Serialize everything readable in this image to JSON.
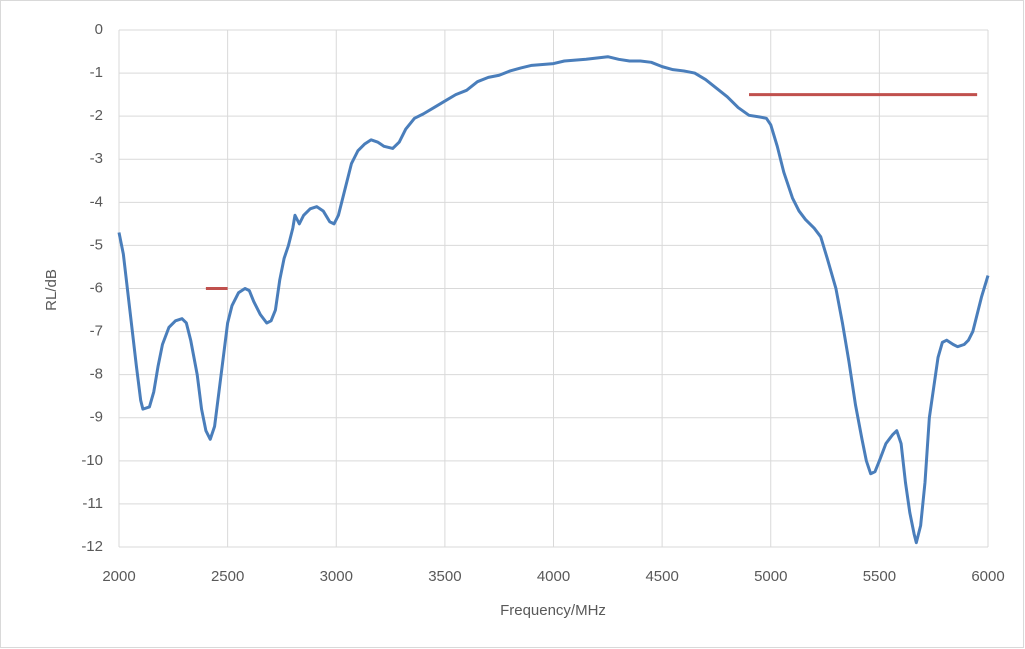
{
  "chart_data": {
    "type": "line",
    "x_label": "Frequency/MHz",
    "y_label": "RL/dB",
    "xlim": [
      2000,
      6000
    ],
    "xticks": [
      2000,
      2500,
      3000,
      3500,
      4000,
      4500,
      5000,
      5500,
      6000
    ],
    "ylim": [
      -12,
      0
    ],
    "yticks": [
      0,
      -1,
      -2,
      -3,
      -4,
      -5,
      -6,
      -7,
      -8,
      -9,
      -10,
      -11,
      -12
    ],
    "grid": true,
    "series": [
      {
        "color": "#4a7ebb",
        "x": [
          2000,
          2020,
          2050,
          2080,
          2100,
          2110,
          2140,
          2160,
          2180,
          2200,
          2230,
          2260,
          2290,
          2310,
          2330,
          2360,
          2380,
          2400,
          2420,
          2440,
          2460,
          2480,
          2500,
          2520,
          2550,
          2580,
          2600,
          2620,
          2650,
          2680,
          2700,
          2720,
          2740,
          2760,
          2780,
          2800,
          2810,
          2830,
          2850,
          2880,
          2910,
          2940,
          2970,
          2990,
          3010,
          3040,
          3070,
          3100,
          3130,
          3160,
          3190,
          3220,
          3260,
          3290,
          3320,
          3360,
          3400,
          3450,
          3500,
          3550,
          3600,
          3650,
          3700,
          3750,
          3800,
          3850,
          3900,
          3950,
          4000,
          4050,
          4100,
          4150,
          4200,
          4250,
          4300,
          4350,
          4400,
          4450,
          4500,
          4550,
          4600,
          4650,
          4700,
          4750,
          4800,
          4850,
          4900,
          4950,
          4980,
          5000,
          5030,
          5060,
          5100,
          5130,
          5160,
          5200,
          5230,
          5260,
          5300,
          5330,
          5360,
          5390,
          5420,
          5440,
          5460,
          5480,
          5500,
          5530,
          5560,
          5580,
          5600,
          5620,
          5640,
          5660,
          5670,
          5690,
          5710,
          5730,
          5750,
          5770,
          5790,
          5810,
          5840,
          5860,
          5890,
          5910,
          5930,
          5950,
          5970,
          6000
        ],
        "values": [
          -4.7,
          -5.2,
          -6.5,
          -7.8,
          -8.6,
          -8.8,
          -8.75,
          -8.4,
          -7.8,
          -7.3,
          -6.9,
          -6.75,
          -6.7,
          -6.8,
          -7.2,
          -8.0,
          -8.8,
          -9.3,
          -9.5,
          -9.2,
          -8.4,
          -7.6,
          -6.8,
          -6.4,
          -6.1,
          -6.0,
          -6.05,
          -6.3,
          -6.6,
          -6.8,
          -6.75,
          -6.5,
          -5.8,
          -5.3,
          -5.0,
          -4.6,
          -4.3,
          -4.5,
          -4.3,
          -4.15,
          -4.1,
          -4.2,
          -4.45,
          -4.5,
          -4.3,
          -3.7,
          -3.1,
          -2.8,
          -2.65,
          -2.55,
          -2.6,
          -2.7,
          -2.75,
          -2.6,
          -2.3,
          -2.05,
          -1.95,
          -1.8,
          -1.65,
          -1.5,
          -1.4,
          -1.2,
          -1.1,
          -1.05,
          -0.95,
          -0.88,
          -0.82,
          -0.8,
          -0.78,
          -0.72,
          -0.7,
          -0.68,
          -0.65,
          -0.62,
          -0.68,
          -0.72,
          -0.72,
          -0.75,
          -0.85,
          -0.92,
          -0.95,
          -1.0,
          -1.15,
          -1.35,
          -1.55,
          -1.8,
          -1.98,
          -2.02,
          -2.05,
          -2.2,
          -2.7,
          -3.3,
          -3.9,
          -4.2,
          -4.4,
          -4.6,
          -4.8,
          -5.3,
          -6.0,
          -6.8,
          -7.7,
          -8.7,
          -9.5,
          -10.0,
          -10.3,
          -10.25,
          -10.0,
          -9.6,
          -9.4,
          -9.3,
          -9.6,
          -10.5,
          -11.2,
          -11.7,
          -11.9,
          -11.5,
          -10.5,
          -9.0,
          -8.3,
          -7.6,
          -7.25,
          -7.2,
          -7.3,
          -7.35,
          -7.3,
          -7.2,
          -7.0,
          -6.6,
          -6.2,
          -5.7
        ]
      },
      {
        "color": "#c0504d",
        "x": [
          2400,
          2500
        ],
        "values": [
          -6,
          -6
        ]
      },
      {
        "color": "#c0504d",
        "x": [
          4900,
          5950
        ],
        "values": [
          -1.5,
          -1.5
        ]
      }
    ]
  }
}
